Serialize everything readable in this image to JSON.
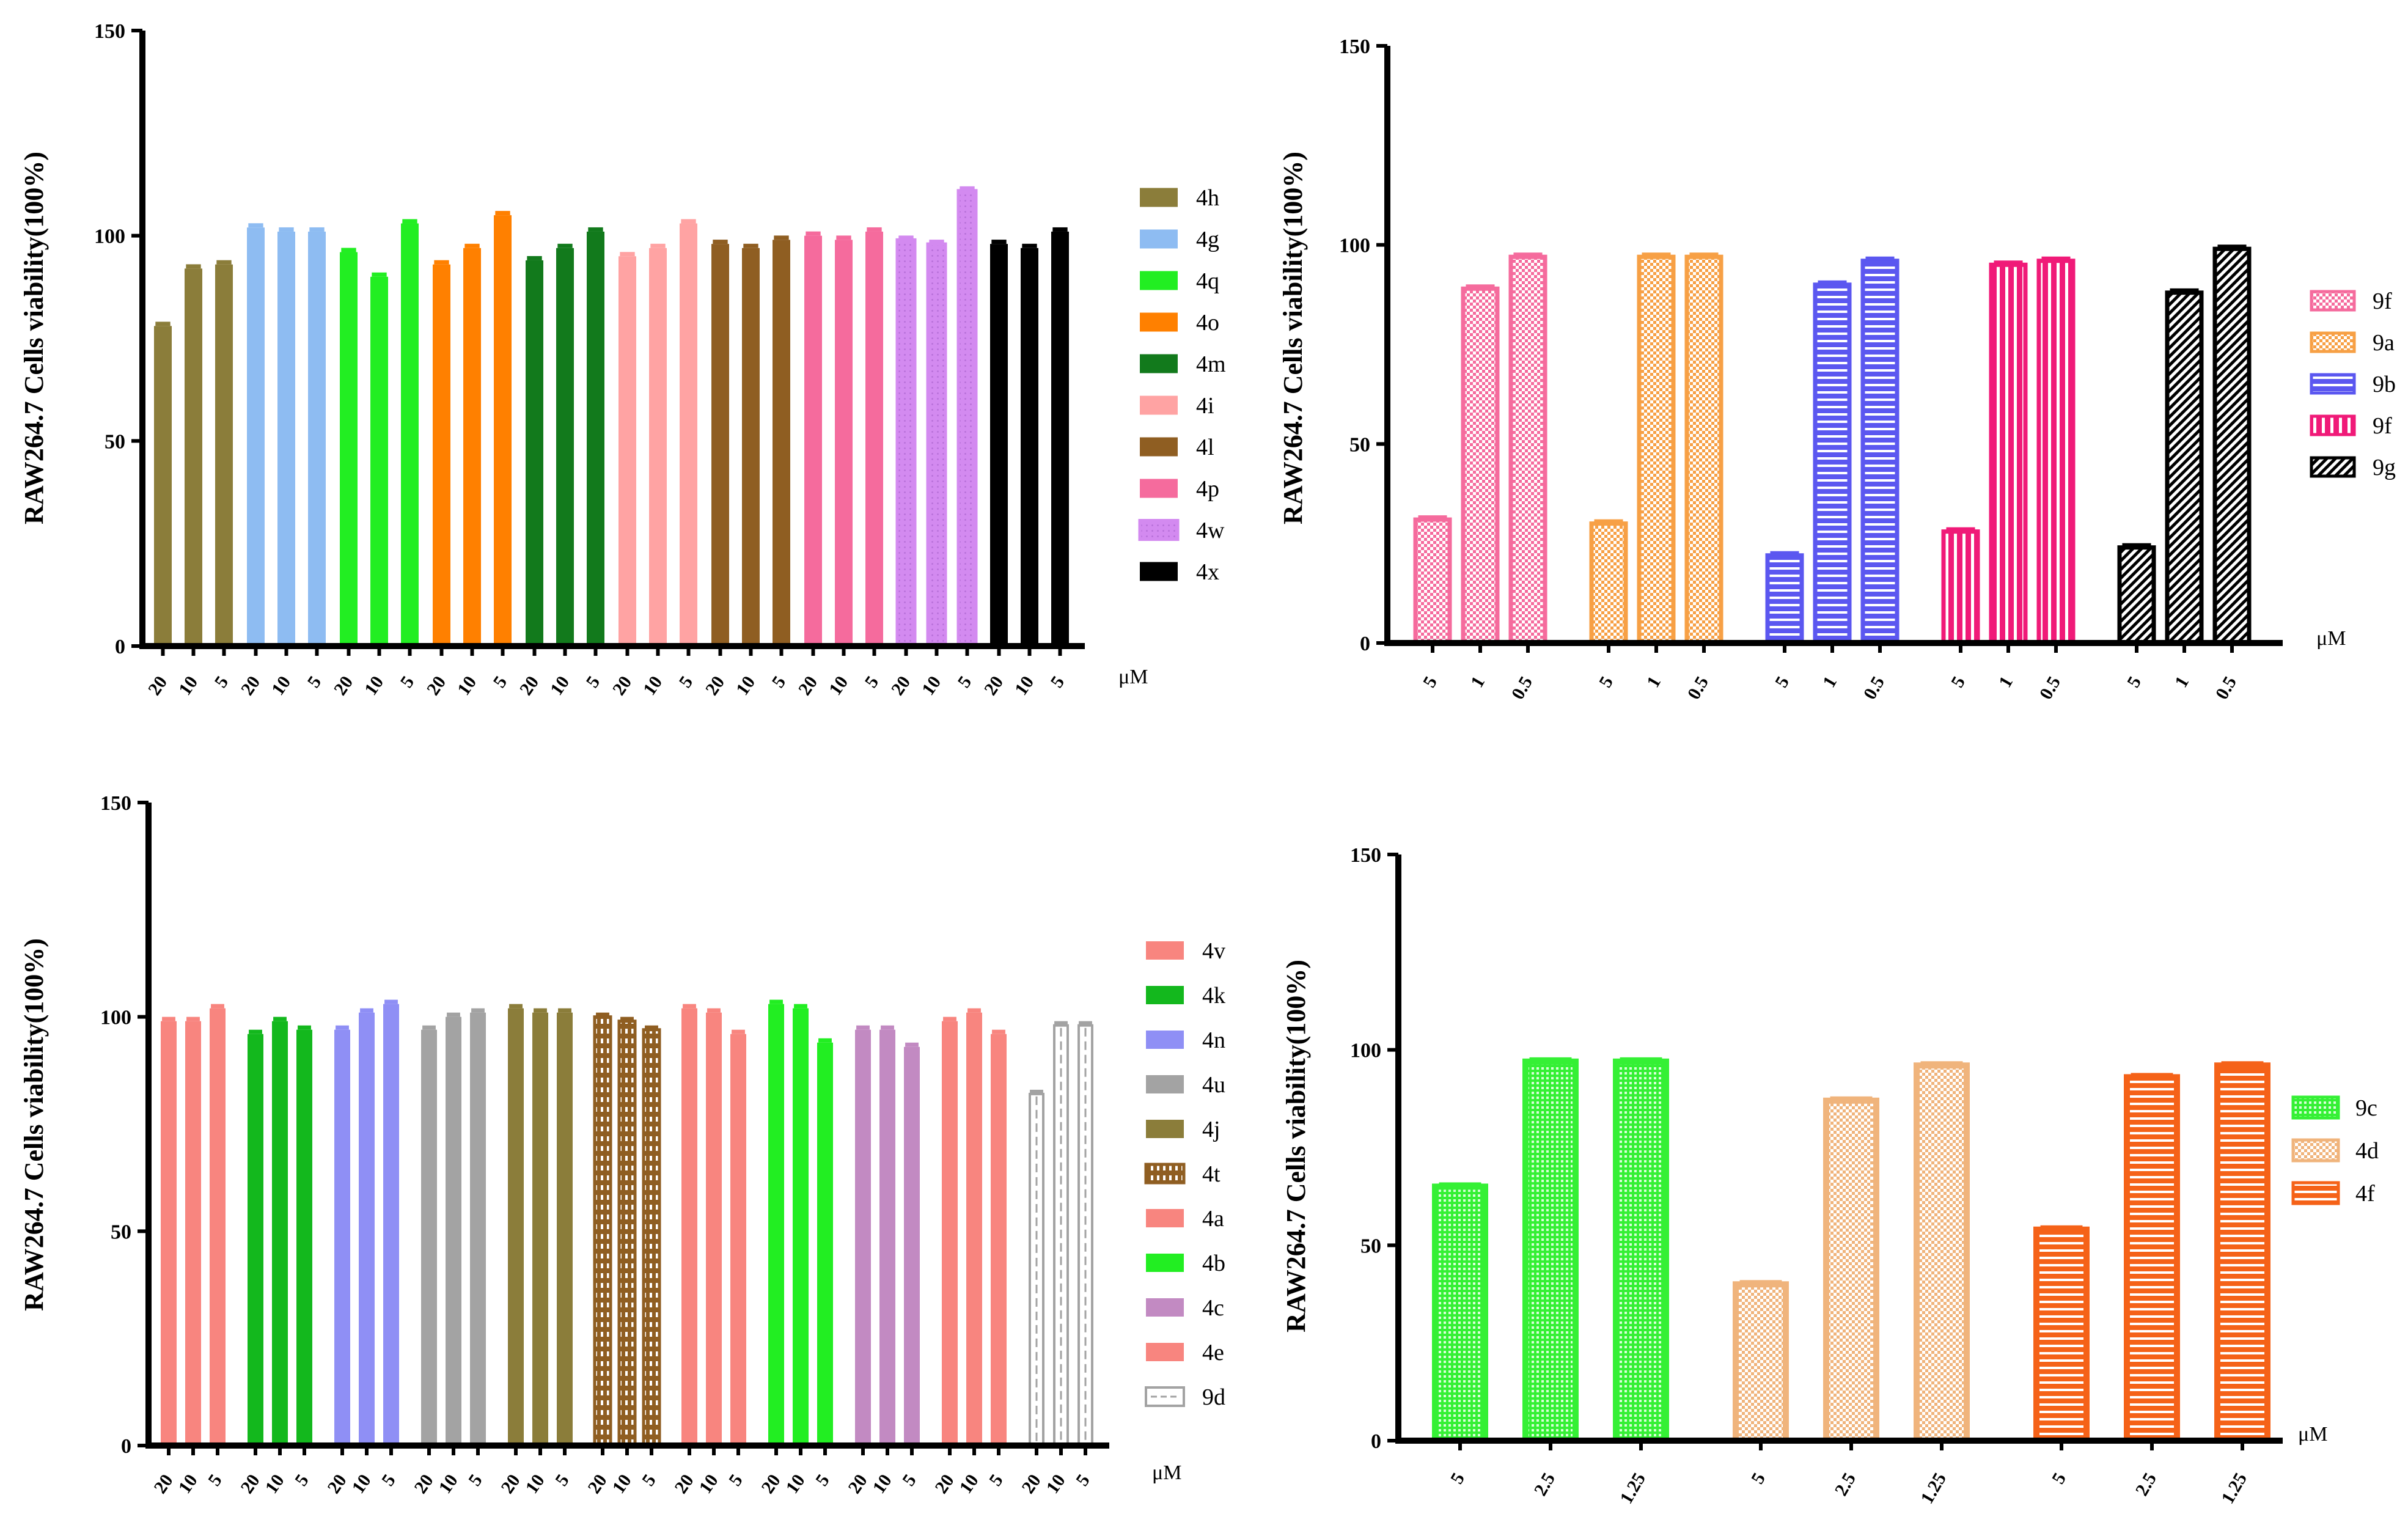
{
  "chart_data": [
    {
      "type": "bar",
      "ylabel": "RAW264.7 Cells viability(100%)",
      "ylim": [
        0,
        150
      ],
      "yticks": [
        0,
        50,
        100,
        150
      ],
      "unit": "μM",
      "legend_position": "right",
      "series": [
        {
          "name": "4h",
          "color": "#8B7D3A",
          "pattern": "solid",
          "concentrations": [
            "20",
            "10",
            "5"
          ],
          "values": [
            78,
            92,
            93
          ]
        },
        {
          "name": "4g",
          "color": "#8EBCF2",
          "pattern": "solid",
          "concentrations": [
            "20",
            "10",
            "5"
          ],
          "values": [
            102,
            101,
            101
          ]
        },
        {
          "name": "4q",
          "color": "#22EE22",
          "pattern": "solid",
          "concentrations": [
            "20",
            "10",
            "5"
          ],
          "values": [
            96,
            90,
            103
          ]
        },
        {
          "name": "4o",
          "color": "#FF8000",
          "pattern": "solid",
          "concentrations": [
            "20",
            "10",
            "5"
          ],
          "values": [
            93,
            97,
            105
          ]
        },
        {
          "name": "4m",
          "color": "#127A1C",
          "pattern": "solid",
          "concentrations": [
            "20",
            "10",
            "5"
          ],
          "values": [
            94,
            97,
            101
          ]
        },
        {
          "name": "4i",
          "color": "#FFA3A3",
          "pattern": "solid",
          "concentrations": [
            "20",
            "10",
            "5"
          ],
          "values": [
            95,
            97,
            103
          ]
        },
        {
          "name": "4l",
          "color": "#8F5E22",
          "pattern": "solid",
          "concentrations": [
            "20",
            "10",
            "5"
          ],
          "values": [
            98,
            97,
            99
          ]
        },
        {
          "name": "4p",
          "color": "#F56B9D",
          "pattern": "solid",
          "concentrations": [
            "20",
            "10",
            "5"
          ],
          "values": [
            100,
            99,
            101
          ]
        },
        {
          "name": "4w",
          "color": "#D38AF0",
          "pattern": "dots",
          "concentrations": [
            "20",
            "10",
            "5"
          ],
          "values": [
            99,
            98,
            111
          ]
        },
        {
          "name": "4x",
          "color": "#000000",
          "pattern": "solid",
          "concentrations": [
            "20",
            "10",
            "5"
          ],
          "values": [
            98,
            97,
            101
          ]
        }
      ]
    },
    {
      "type": "bar",
      "ylabel": "RAW264.7 Cells viability(100%)",
      "ylim": [
        0,
        150
      ],
      "yticks": [
        0,
        50,
        100,
        150
      ],
      "unit": "μM",
      "legend_position": "right",
      "series": [
        {
          "name": "9f",
          "color": "#F56B9D",
          "pattern": "checker",
          "concentrations": [
            "5",
            "1",
            "0.5"
          ],
          "values": [
            31,
            89,
            97
          ]
        },
        {
          "name": "9a",
          "color": "#F7A045",
          "pattern": "checker",
          "concentrations": [
            "5",
            "1",
            "0.5"
          ],
          "values": [
            30,
            97,
            97
          ]
        },
        {
          "name": "9b",
          "color": "#5B57F0",
          "pattern": "hstripes",
          "concentrations": [
            "5",
            "1",
            "0.5"
          ],
          "values": [
            22,
            90,
            96
          ]
        },
        {
          "name": "9f",
          "color": "#F01A78",
          "pattern": "vstripes",
          "concentrations": [
            "5",
            "1",
            "0.5"
          ],
          "values": [
            28,
            95,
            96
          ]
        },
        {
          "name": "9g",
          "color": "#000000",
          "pattern": "diag",
          "concentrations": [
            "5",
            "1",
            "0.5"
          ],
          "values": [
            24,
            88,
            99
          ]
        }
      ]
    },
    {
      "type": "bar",
      "ylabel": "RAW264.7 Cells viability(100%)",
      "ylim": [
        0,
        150
      ],
      "yticks": [
        0,
        50,
        100,
        150
      ],
      "unit": "μM",
      "legend_position": "right",
      "series": [
        {
          "name": "4v",
          "color": "#F8857F",
          "pattern": "solid",
          "concentrations": [
            "20",
            "10",
            "5"
          ],
          "values": [
            99,
            99,
            102
          ]
        },
        {
          "name": "4k",
          "color": "#13B81D",
          "pattern": "solid",
          "concentrations": [
            "20",
            "10",
            "5"
          ],
          "values": [
            96,
            99,
            97
          ]
        },
        {
          "name": "4n",
          "color": "#8F8FF5",
          "pattern": "solid",
          "concentrations": [
            "20",
            "10",
            "5"
          ],
          "values": [
            97,
            101,
            103
          ]
        },
        {
          "name": "4u",
          "color": "#A3A3A3",
          "pattern": "solid",
          "concentrations": [
            "20",
            "10",
            "5"
          ],
          "values": [
            97,
            100,
            101
          ]
        },
        {
          "name": "4j",
          "color": "#8B7D3A",
          "pattern": "solid",
          "concentrations": [
            "20",
            "10",
            "5"
          ],
          "values": [
            102,
            101,
            101
          ]
        },
        {
          "name": "4t",
          "color": "#8F5E22",
          "pattern": "dash",
          "concentrations": [
            "20",
            "10",
            "5"
          ],
          "values": [
            100,
            99,
            97
          ]
        },
        {
          "name": "4a",
          "color": "#F8857F",
          "pattern": "solid",
          "concentrations": [
            "20",
            "10",
            "5"
          ],
          "values": [
            102,
            101,
            96
          ]
        },
        {
          "name": "4b",
          "color": "#22EE22",
          "pattern": "solid",
          "concentrations": [
            "20",
            "10",
            "5"
          ],
          "values": [
            103,
            102,
            94
          ]
        },
        {
          "name": "4c",
          "color": "#C28AC2",
          "pattern": "solid",
          "concentrations": [
            "20",
            "10",
            "5"
          ],
          "values": [
            97,
            97,
            93
          ]
        },
        {
          "name": "4e",
          "color": "#F8857F",
          "pattern": "solid",
          "concentrations": [
            "20",
            "10",
            "5"
          ],
          "values": [
            99,
            101,
            96
          ]
        },
        {
          "name": "9d",
          "color": "#A3A3A3",
          "pattern": "outline-dash",
          "concentrations": [
            "20",
            "10",
            "5"
          ],
          "values": [
            82,
            98,
            98
          ]
        }
      ]
    },
    {
      "type": "bar",
      "ylabel": "RAW264.7 Cells viability(100%)",
      "ylim": [
        0,
        150
      ],
      "yticks": [
        0,
        50,
        100,
        150
      ],
      "unit": "μM",
      "legend_position": "right",
      "series": [
        {
          "name": "9c",
          "color": "#35F035",
          "pattern": "mesh",
          "concentrations": [
            "5",
            "2.5",
            "1.25"
          ],
          "values": [
            65,
            97,
            97
          ]
        },
        {
          "name": "4d",
          "color": "#F0B47C",
          "pattern": "checker",
          "concentrations": [
            "5",
            "2.5",
            "1.25"
          ],
          "values": [
            40,
            87,
            96
          ]
        },
        {
          "name": "4f",
          "color": "#F56218",
          "pattern": "hstripes",
          "concentrations": [
            "5",
            "2.5",
            "1.25"
          ],
          "values": [
            54,
            93,
            96
          ]
        }
      ]
    }
  ]
}
